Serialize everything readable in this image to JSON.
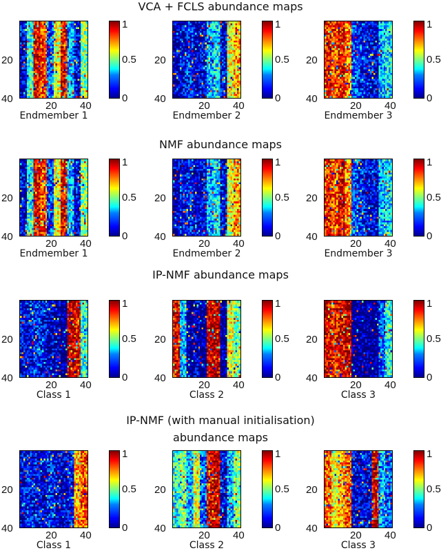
{
  "chart_data": {
    "type": "heatmap",
    "colormap": "jet",
    "colorbar": {
      "ticks": [
        "0",
        "0.5",
        "1"
      ],
      "range": [
        0,
        1
      ]
    },
    "axis_ticks": {
      "x": [
        "20",
        "40"
      ],
      "y": [
        "20",
        "40"
      ]
    },
    "grid_size": [
      40,
      40
    ],
    "rows": [
      {
        "title": "VCA + FCLS abundance maps",
        "panels": [
          {
            "xlabel": "Endmember 1",
            "pattern": [
              0.1,
              0.4,
              0.9,
              0.8,
              0.2,
              0.6,
              0.9,
              0.3,
              0.1,
              0.5
            ]
          },
          {
            "xlabel": "Endmember 2",
            "pattern": [
              0.05,
              0.1,
              0.15,
              0.05,
              0.1,
              0.3,
              0.35,
              0.1,
              0.6,
              0.7
            ]
          },
          {
            "xlabel": "Endmember 3",
            "pattern": [
              0.85,
              0.8,
              0.9,
              0.75,
              0.2,
              0.15,
              0.1,
              0.1,
              0.3,
              0.35
            ]
          }
        ]
      },
      {
        "title": "NMF abundance maps",
        "panels": [
          {
            "xlabel": "Endmember 1",
            "pattern": [
              0.1,
              0.4,
              0.9,
              0.8,
              0.2,
              0.6,
              0.9,
              0.3,
              0.1,
              0.5
            ]
          },
          {
            "xlabel": "Endmember 2",
            "pattern": [
              0.05,
              0.1,
              0.15,
              0.05,
              0.1,
              0.3,
              0.35,
              0.1,
              0.6,
              0.7
            ]
          },
          {
            "xlabel": "Endmember 3",
            "pattern": [
              0.85,
              0.8,
              0.9,
              0.75,
              0.2,
              0.15,
              0.1,
              0.1,
              0.3,
              0.35
            ]
          }
        ]
      },
      {
        "title": "IP-NMF abundance maps",
        "panels": [
          {
            "xlabel": "Class 1",
            "pattern": [
              0.1,
              0.1,
              0.15,
              0.1,
              0.05,
              0.05,
              0.0,
              0.95,
              0.9,
              0.4
            ]
          },
          {
            "xlabel": "Class 2",
            "pattern": [
              0.9,
              0.3,
              0.0,
              0.05,
              0.0,
              0.95,
              0.95,
              0.0,
              0.6,
              0.5
            ]
          },
          {
            "xlabel": "Class 3",
            "pattern": [
              0.9,
              0.85,
              0.9,
              0.95,
              0.0,
              0.0,
              0.0,
              0.0,
              0.2,
              0.4
            ]
          }
        ]
      },
      {
        "title": "IP-NMF (with manual initialisation)\nabundance maps",
        "panels": [
          {
            "xlabel": "Class 1",
            "pattern": [
              0.1,
              0.15,
              0.1,
              0.05,
              0.15,
              0.1,
              0.05,
              0.1,
              0.7,
              0.8
            ]
          },
          {
            "xlabel": "Class 2",
            "pattern": [
              0.4,
              0.5,
              0.3,
              0.6,
              0.2,
              0.9,
              0.95,
              0.1,
              0.3,
              0.5
            ]
          },
          {
            "xlabel": "Class 3",
            "pattern": [
              0.8,
              0.6,
              0.7,
              0.8,
              0.1,
              0.1,
              0.1,
              0.9,
              0.3,
              0.2
            ]
          }
        ]
      }
    ]
  }
}
